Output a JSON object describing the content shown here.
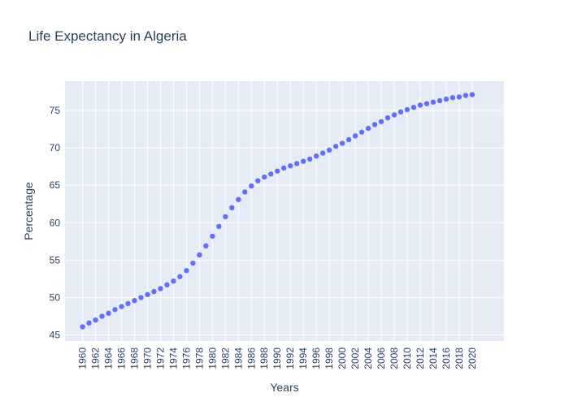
{
  "chart_data": {
    "type": "scatter",
    "title": "Life Expectancy in Algeria",
    "xlabel": "Years",
    "ylabel": "Percentage",
    "xlim": [
      1957.3,
      2024.9
    ],
    "ylim": [
      44.2,
      78.9
    ],
    "x_ticks": [
      1960,
      1962,
      1964,
      1966,
      1968,
      1970,
      1972,
      1974,
      1976,
      1978,
      1980,
      1982,
      1984,
      1986,
      1988,
      1990,
      1992,
      1994,
      1996,
      1998,
      2000,
      2002,
      2004,
      2006,
      2008,
      2010,
      2012,
      2014,
      2016,
      2018,
      2020
    ],
    "y_ticks": [
      45,
      50,
      55,
      60,
      65,
      70,
      75
    ],
    "grid": true,
    "marker_color": "#636efa",
    "plot_bg": "#e5ecf6",
    "series": [
      {
        "x": [
          1960,
          1961,
          1962,
          1963,
          1964,
          1965,
          1966,
          1967,
          1968,
          1969,
          1970,
          1971,
          1972,
          1973,
          1974,
          1975,
          1976,
          1977,
          1978,
          1979,
          1980,
          1981,
          1982,
          1983,
          1984,
          1985,
          1986,
          1987,
          1988,
          1989,
          1990,
          1991,
          1992,
          1993,
          1994,
          1995,
          1996,
          1997,
          1998,
          1999,
          2000,
          2001,
          2002,
          2003,
          2004,
          2005,
          2006,
          2007,
          2008,
          2009,
          2010,
          2011,
          2012,
          2013,
          2014,
          2015,
          2016,
          2017,
          2018,
          2019,
          2020
        ],
        "y": [
          46.1,
          46.6,
          47.0,
          47.5,
          47.9,
          48.4,
          48.8,
          49.2,
          49.6,
          50.0,
          50.4,
          50.8,
          51.2,
          51.7,
          52.2,
          52.8,
          53.6,
          54.6,
          55.7,
          56.9,
          58.2,
          59.5,
          60.8,
          62.0,
          63.1,
          64.1,
          64.9,
          65.6,
          66.1,
          66.5,
          66.9,
          67.3,
          67.6,
          67.9,
          68.2,
          68.5,
          68.9,
          69.3,
          69.7,
          70.2,
          70.6,
          71.1,
          71.6,
          72.1,
          72.6,
          73.1,
          73.5,
          74.0,
          74.4,
          74.8,
          75.1,
          75.4,
          75.7,
          75.9,
          76.1,
          76.3,
          76.5,
          76.7,
          76.8,
          77.0,
          77.1
        ]
      }
    ]
  }
}
